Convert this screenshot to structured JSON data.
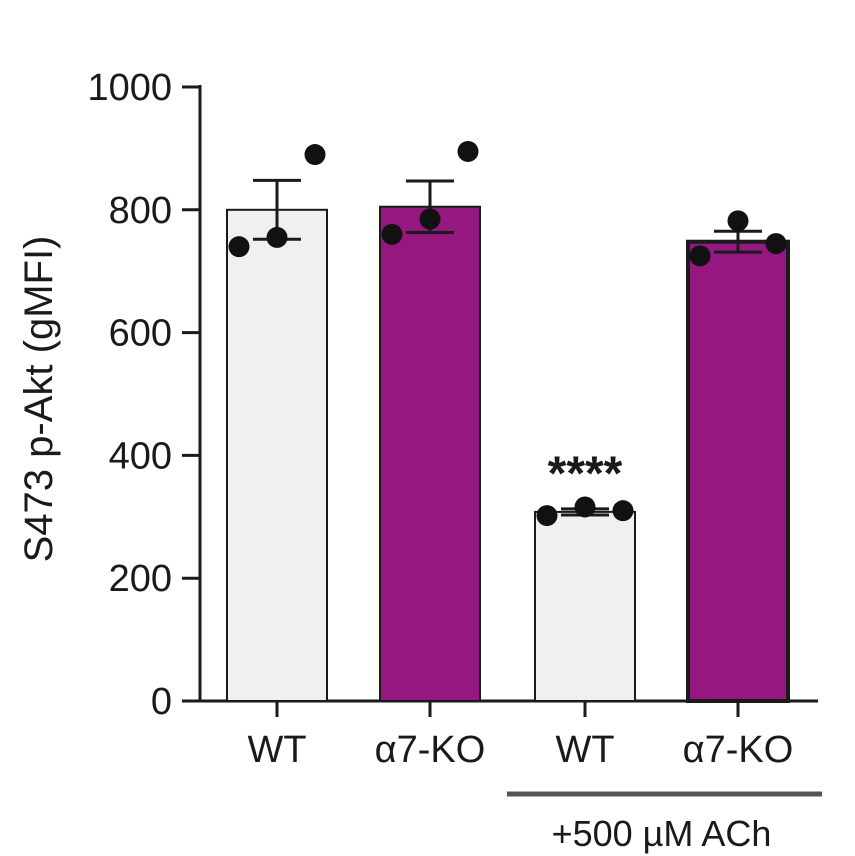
{
  "chart_data": {
    "type": "bar",
    "ylabel": "S473 p-Akt (gMFI)",
    "ylim": [
      0,
      1000
    ],
    "yticks": [
      0,
      200,
      400,
      600,
      800,
      1000
    ],
    "categories": [
      "WT",
      "α7-KO",
      "WT",
      "α7-KO"
    ],
    "values": [
      800,
      805,
      308,
      748
    ],
    "sem": [
      48,
      42,
      5,
      17
    ],
    "points": [
      [
        740,
        755,
        890
      ],
      [
        760,
        785,
        895
      ],
      [
        302,
        316,
        310
      ],
      [
        725,
        782,
        745
      ]
    ],
    "bar_colors": [
      "#f0f0f0",
      "#941880",
      "#f0f0f0",
      "#941880"
    ],
    "group": {
      "label": "+500 µM ACh",
      "start_index": 2,
      "end_index": 3,
      "line_color": "#555555"
    },
    "annotations": [
      {
        "text": "****",
        "category_index": 2,
        "y": 400
      }
    ]
  }
}
